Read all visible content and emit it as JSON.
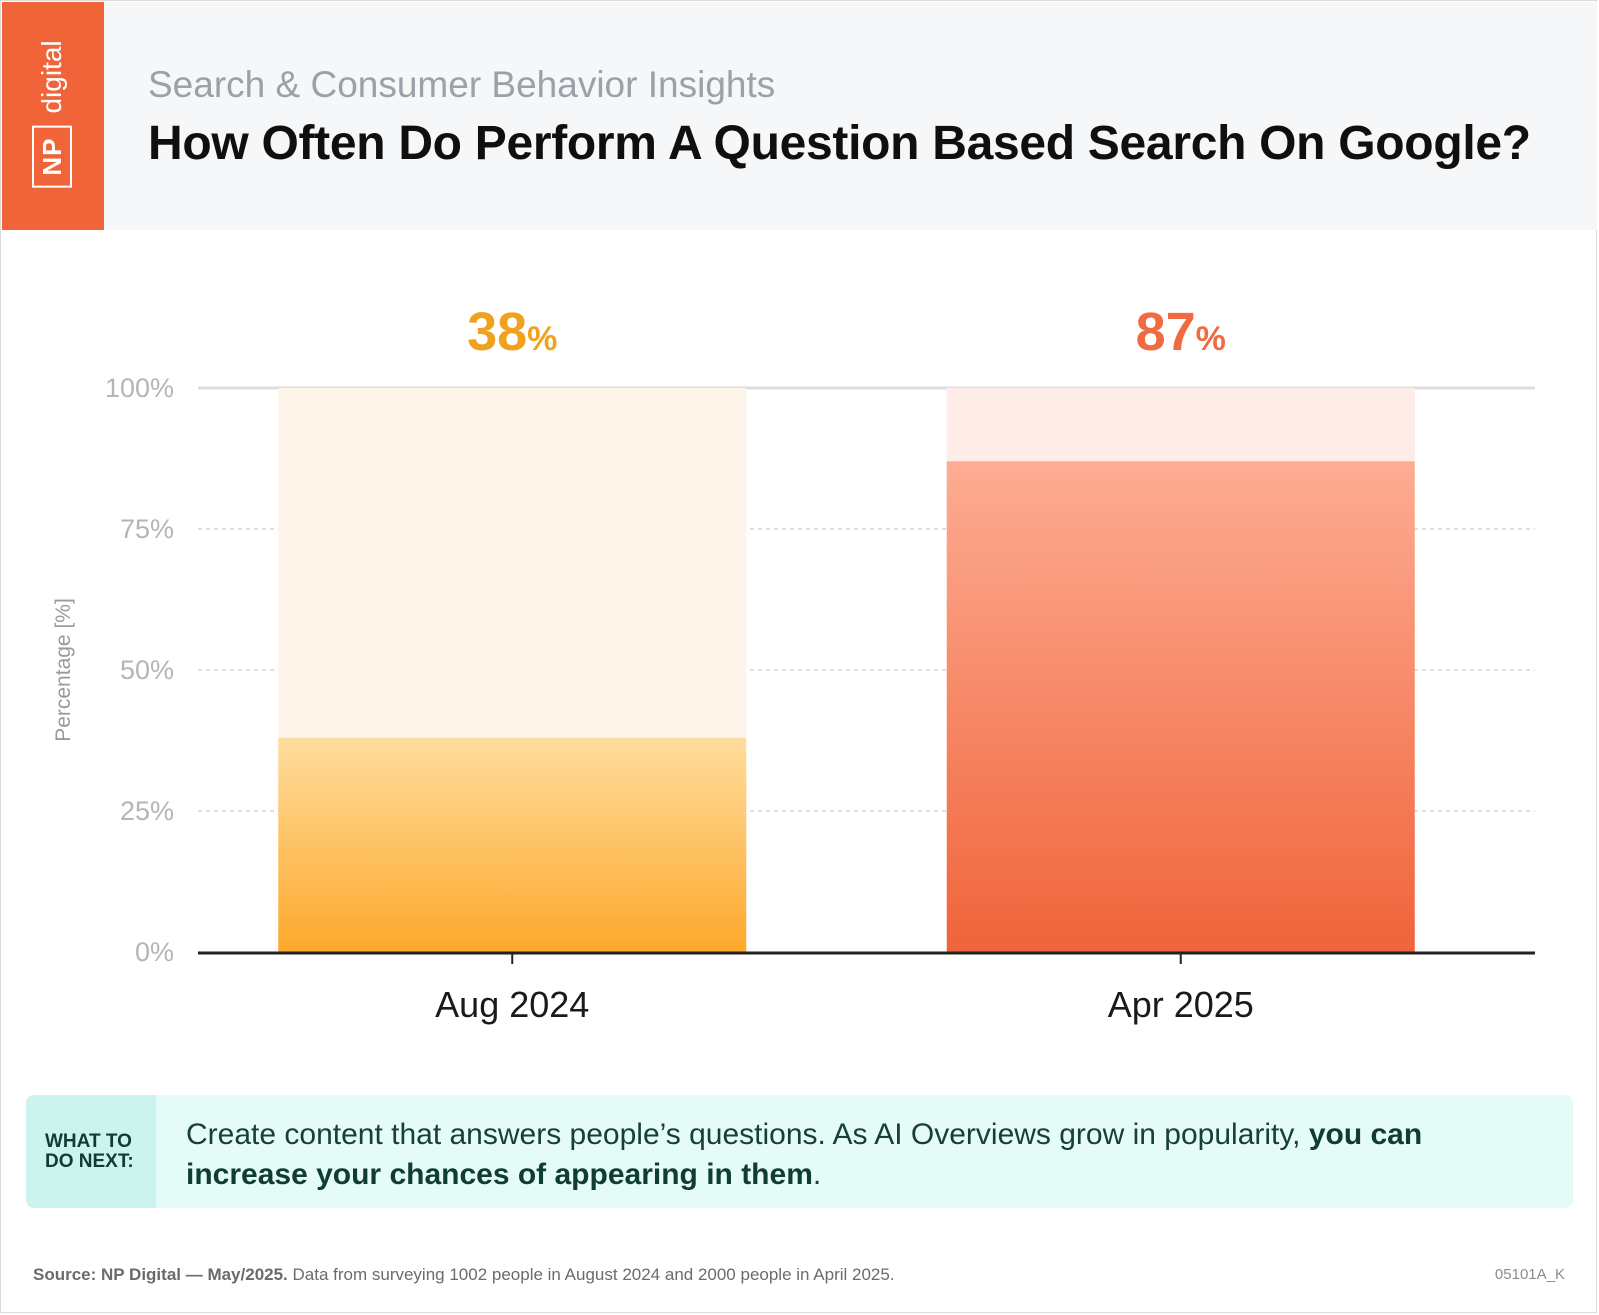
{
  "header": {
    "logo_np": "NP",
    "logo_digital": "digital",
    "subtitle": "Search & Consumer Behavior Insights",
    "title": "How Often Do Perform A Question Based Search On Google?"
  },
  "colors": {
    "brand": "#f1643a",
    "bar1_top": "#fedd9e",
    "bar1_bottom": "#fea82b",
    "bar1_track": "#fdf5e9",
    "bar1_label": "#f0a11d",
    "bar2_top": "#fdac93",
    "bar2_bottom": "#f0643a",
    "bar2_track": "#fdece8",
    "bar2_label": "#f06a42"
  },
  "chart_data": {
    "type": "bar",
    "categories": [
      "Aug 2024",
      "Apr 2025"
    ],
    "values": [
      38,
      87
    ],
    "value_labels": [
      "38",
      "87"
    ],
    "value_suffix": "%",
    "ylabel": "Percentage [%]",
    "xlabel": "",
    "ylim": [
      0,
      100
    ],
    "yticks": [
      0,
      25,
      50,
      75,
      100
    ],
    "ytick_labels": [
      "0%",
      "25%",
      "50%",
      "75%",
      "100%"
    ],
    "grid": "dashed horizontal",
    "title": ""
  },
  "tip": {
    "label": "WHAT TO DO NEXT:",
    "text_plain": "Create content that answers people’s questions. As AI Overviews grow in popularity, ",
    "text_bold": "you can increase your chances of appearing in them",
    "text_end": "."
  },
  "footer": {
    "source_bold": "Source: NP Digital — May/2025.",
    "source_text": " Data from surveying 1002 people in August 2024 and 2000 people in April 2025.",
    "code": "05101A_K"
  }
}
